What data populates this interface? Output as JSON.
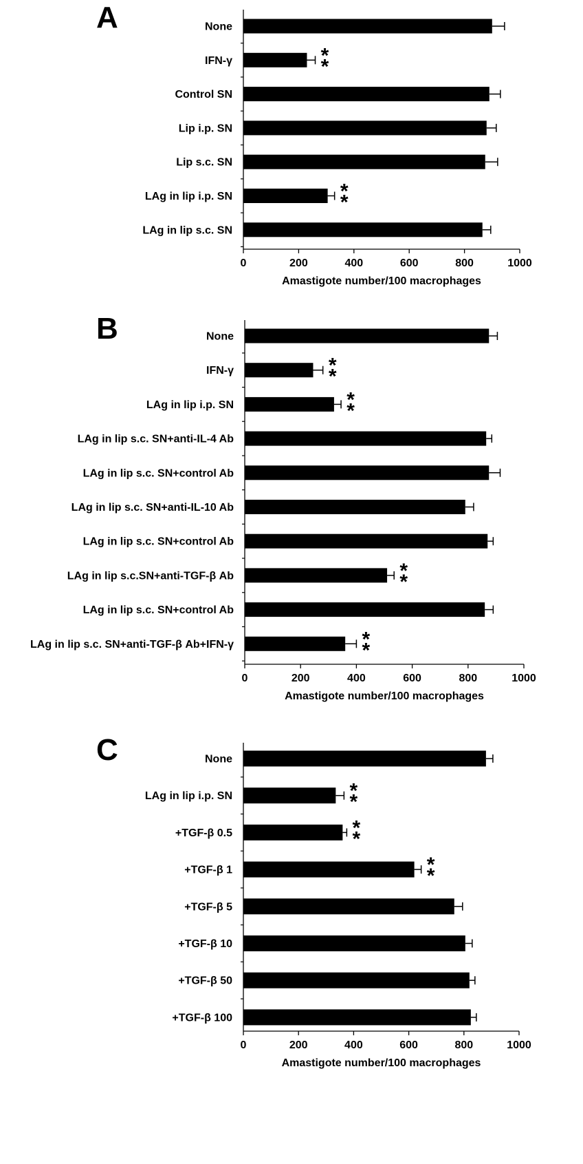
{
  "chart_data": [
    {
      "panel": "A",
      "type": "bar",
      "orientation": "horizontal",
      "xlabel": "Amastigote number/100 macrophages",
      "xlim": [
        0,
        1000
      ],
      "xticks": [
        "0",
        "200",
        "400",
        "600",
        "800",
        "1000"
      ],
      "categories": [
        "None",
        "IFN-γ",
        "Control SN",
        "Lip i.p. SN",
        "Lip s.c. SN",
        "LAg in lip i.p. SN",
        "LAg in lip s.c. SN"
      ],
      "values": [
        900,
        230,
        890,
        880,
        875,
        305,
        865
      ],
      "errors": [
        45,
        30,
        40,
        35,
        45,
        25,
        30
      ],
      "significance": [
        "",
        "**",
        "",
        "",
        "",
        "**",
        ""
      ]
    },
    {
      "panel": "B",
      "type": "bar",
      "orientation": "horizontal",
      "xlabel": "Amastigote number/100 macrophages",
      "xlim": [
        0,
        1000
      ],
      "xticks": [
        "0",
        "200",
        "400",
        "600",
        "800",
        "1000"
      ],
      "categories": [
        "None",
        "IFN-γ",
        "LAg in lip i.p. SN",
        "LAg in lip s.c. SN+anti-IL-4 Ab",
        "LAg in lip s.c. SN+control Ab",
        "LAg in lip s.c. SN+anti-IL-10 Ab",
        "LAg in lip s.c. SN+control Ab",
        "LAg in lip s.c.SN+anti-TGF-β Ab",
        "LAg in lip s.c. SN+control Ab",
        "LAg in lip s.c. SN+anti-TGF-β Ab+IFN-γ"
      ],
      "values": [
        875,
        245,
        320,
        865,
        875,
        790,
        870,
        510,
        860,
        360
      ],
      "errors": [
        30,
        35,
        25,
        20,
        40,
        30,
        20,
        25,
        30,
        40
      ],
      "significance": [
        "",
        "**",
        "**",
        "",
        "",
        "",
        "",
        "**",
        "",
        "**"
      ]
    },
    {
      "panel": "C",
      "type": "bar",
      "orientation": "horizontal",
      "xlabel": "Amastigote number/100 macrophages",
      "xlim": [
        0,
        1000
      ],
      "xticks": [
        "0",
        "200",
        "400",
        "600",
        "800",
        "1000"
      ],
      "categories": [
        "None",
        "LAg in lip i.p. SN",
        "+TGF-β 0.5",
        "+TGF-β 1",
        "+TGF-β 5",
        "+TGF-β 10",
        "+TGF-β 50",
        "+TGF-β 100"
      ],
      "values": [
        880,
        335,
        360,
        620,
        765,
        805,
        820,
        825
      ],
      "errors": [
        25,
        30,
        15,
        25,
        30,
        25,
        20,
        20
      ],
      "significance": [
        "",
        "**",
        "**",
        "**",
        "",
        "",
        "",
        ""
      ]
    }
  ]
}
